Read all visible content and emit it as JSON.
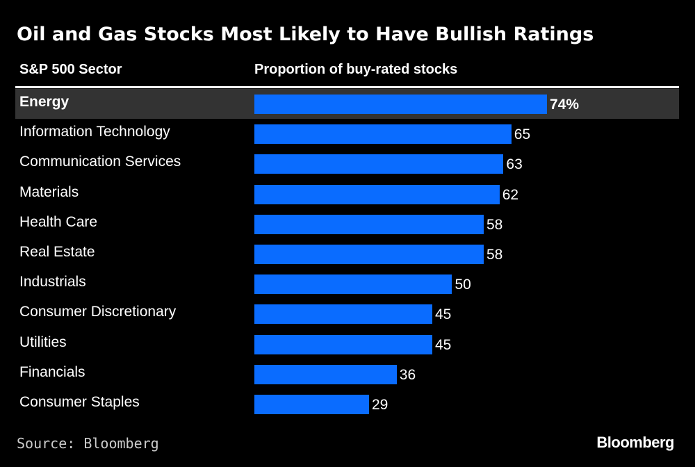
{
  "chart_data": {
    "type": "bar",
    "orientation": "horizontal",
    "title": "Oil and Gas Stocks Most Likely to Have Bullish Ratings",
    "category_header": "S&P 500 Sector",
    "value_header": "Proportion of buy-rated stocks",
    "categories": [
      "Energy",
      "Information Technology",
      "Communication Services",
      "Materials",
      "Health Care",
      "Real Estate",
      "Industrials",
      "Consumer Discretionary",
      "Utilities",
      "Financials",
      "Consumer Staples"
    ],
    "values": [
      74,
      65,
      63,
      62,
      58,
      58,
      50,
      45,
      45,
      36,
      29
    ],
    "value_labels": [
      "74%",
      "65",
      "63",
      "62",
      "58",
      "58",
      "50",
      "45",
      "45",
      "36",
      "29"
    ],
    "highlighted": "Energy",
    "bar_color": "#0a6cff",
    "highlight_color": "#333333",
    "xlim": [
      0,
      74
    ]
  },
  "footer": {
    "source": "Source: Bloomberg",
    "logo": "Bloomberg"
  }
}
